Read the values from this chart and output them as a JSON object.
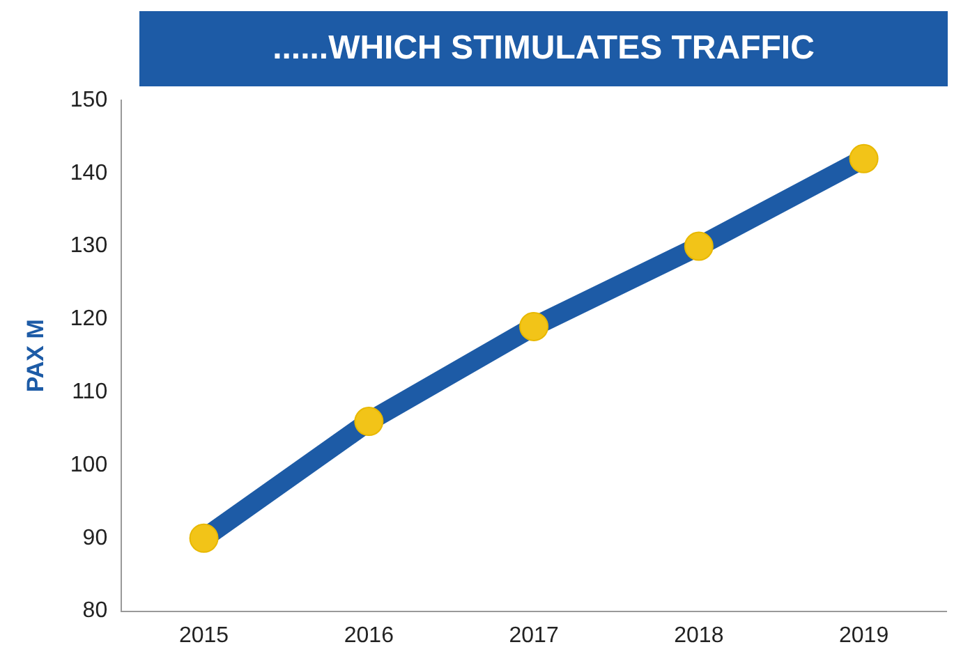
{
  "chart_data": {
    "type": "line",
    "title": "......WHICH STIMULATES TRAFFIC",
    "ylabel": "PAX M",
    "categories": [
      "2015",
      "2016",
      "2017",
      "2018",
      "2019"
    ],
    "series": [
      {
        "color": "#1d5ba6",
        "values": [
          90,
          106,
          119,
          130,
          142
        ]
      }
    ],
    "ylim": [
      80,
      150
    ],
    "yticks": [
      80,
      90,
      100,
      110,
      120,
      130,
      140,
      150
    ],
    "grid": false,
    "legend": false,
    "marker": "circle",
    "line_style": "solid"
  }
}
